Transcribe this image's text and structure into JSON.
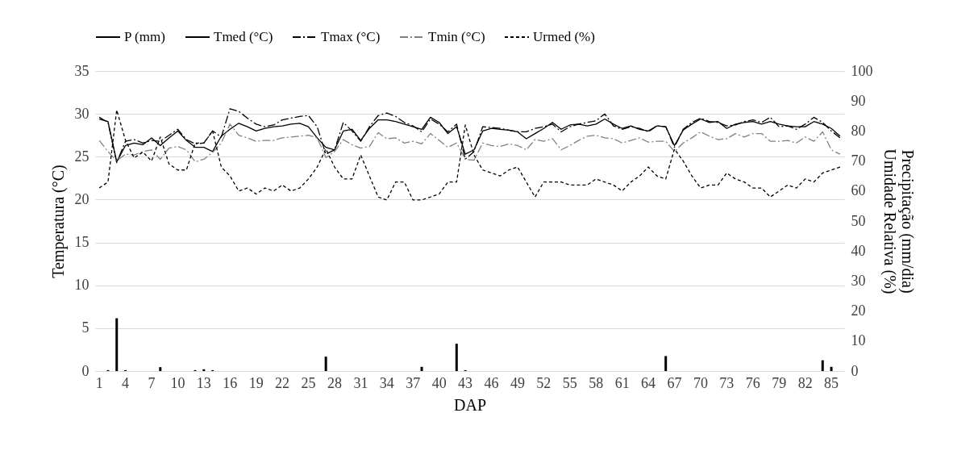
{
  "chart_data": {
    "type": "line",
    "xlabel": "DAP",
    "ylabel": "Temperatura (°C)",
    "y2label": "Precipitação (mm/dia) Umidade Relativa (%)",
    "categories": [
      "1",
      null,
      null,
      "4",
      null,
      null,
      "7",
      null,
      null,
      "10",
      null,
      null,
      "13",
      null,
      null,
      "16",
      null,
      null,
      "19",
      null,
      null,
      "22",
      null,
      null,
      "25",
      null,
      null,
      "28",
      null,
      null,
      "31",
      null,
      null,
      "34",
      null,
      null,
      "37",
      null,
      null,
      "40",
      null,
      null,
      "43",
      null,
      null,
      "46",
      null,
      null,
      "49",
      null,
      null,
      "52",
      null,
      null,
      "55",
      null,
      null,
      "58",
      null,
      null,
      "61",
      null,
      null,
      "64",
      null,
      null,
      "67",
      null,
      null,
      "70",
      null,
      null,
      "73",
      null,
      null,
      "76",
      null,
      null,
      "79",
      null,
      null,
      "82",
      null,
      null,
      "85",
      null
    ],
    "ylim": [
      0,
      35
    ],
    "yticks": [
      0,
      5,
      10,
      15,
      20,
      25,
      30,
      35
    ],
    "y2lim": [
      0,
      100
    ],
    "y2ticks": [
      0,
      10,
      20,
      30,
      40,
      50,
      60,
      70,
      80,
      90,
      100
    ],
    "grid": "y",
    "legend": "top",
    "marker": "none",
    "series": [
      {
        "name": "P (mm)",
        "type": "bar",
        "axis": "y2",
        "color": "#000000",
        "values": [
          0,
          0.3,
          17.6,
          0.3,
          0,
          0,
          0,
          1.3,
          0,
          0,
          0,
          0.3,
          0.6,
          0.3,
          0,
          0,
          0,
          0,
          0,
          0,
          0,
          0,
          0,
          0,
          0,
          0,
          4.8,
          0,
          0,
          0,
          0,
          0,
          0,
          0,
          0,
          0,
          0,
          1.4,
          0,
          0,
          0,
          9.1,
          0.3,
          0,
          0,
          0,
          0,
          0,
          0,
          0,
          0,
          0,
          0,
          0,
          0,
          0,
          0,
          0,
          0,
          0,
          0,
          0,
          0,
          0,
          0,
          5,
          0,
          0,
          0,
          0,
          0,
          0,
          0,
          0,
          0,
          0,
          0,
          0,
          0,
          0,
          0,
          0,
          0,
          3.6,
          1.4,
          0
        ]
      },
      {
        "name": "Tmed (°C)",
        "line_style": "solid",
        "color": "#000000",
        "values": [
          29.4,
          29.1,
          24.4,
          26.3,
          26.6,
          26.4,
          27.2,
          26.3,
          27.2,
          28.0,
          26.9,
          26.1,
          26.1,
          25.6,
          27.4,
          28.2,
          28.9,
          28.5,
          28.0,
          28.3,
          28.5,
          28.6,
          28.8,
          28.9,
          28.5,
          27.2,
          26.1,
          25.8,
          28.0,
          28.2,
          26.9,
          28.3,
          29.3,
          29.3,
          29.1,
          28.8,
          28.5,
          28.2,
          29.6,
          29.0,
          27.7,
          28.5,
          25.3,
          25.8,
          28.0,
          28.3,
          28.2,
          28.1,
          27.9,
          27.1,
          27.7,
          28.3,
          29.0,
          28.2,
          28.7,
          28.8,
          28.6,
          28.8,
          29.4,
          28.8,
          28.3,
          28.6,
          28.2,
          28.0,
          28.6,
          28.5,
          26.3,
          28.1,
          28.8,
          29.4,
          29.0,
          29.1,
          28.3,
          28.8,
          29.0,
          29.1,
          28.8,
          29.1,
          28.8,
          28.6,
          28.5,
          28.5,
          29.1,
          28.8,
          28.3,
          27.4
        ]
      },
      {
        "name": "Tmax (°C)",
        "line_style": "dashdot",
        "color": "#000000",
        "values": [
          29.6,
          29.0,
          24.3,
          26.8,
          27.0,
          26.6,
          26.9,
          26.8,
          27.5,
          28.2,
          27.0,
          26.5,
          26.6,
          28.0,
          27.3,
          30.6,
          30.3,
          29.5,
          28.8,
          28.5,
          28.7,
          29.3,
          29.5,
          29.7,
          29.8,
          28.5,
          25.3,
          25.8,
          29.0,
          28.0,
          26.8,
          28.5,
          29.8,
          30.1,
          29.7,
          29.0,
          28.6,
          27.9,
          29.4,
          28.8,
          27.9,
          28.8,
          24.7,
          25.6,
          28.5,
          28.4,
          28.3,
          28.1,
          27.9,
          27.9,
          28.3,
          28.5,
          28.8,
          27.9,
          28.5,
          28.8,
          29.0,
          29.2,
          30.0,
          28.6,
          28.2,
          28.5,
          28.3,
          27.9,
          28.6,
          28.5,
          26.1,
          28.2,
          29.0,
          29.5,
          29.1,
          29.0,
          28.6,
          28.7,
          29.1,
          29.3,
          29.0,
          29.6,
          28.5,
          28.6,
          28.2,
          28.8,
          29.6,
          29.0,
          28.0,
          27.2
        ]
      },
      {
        "name": "Tmin (°C)",
        "line_style": "dashdot",
        "color": "#808080",
        "values": [
          26.9,
          25.6,
          24.5,
          25.3,
          25.2,
          25.6,
          25.8,
          24.7,
          26.0,
          26.2,
          25.8,
          24.4,
          24.7,
          25.5,
          26.6,
          28.8,
          27.5,
          27.2,
          26.8,
          26.9,
          26.9,
          27.2,
          27.3,
          27.4,
          27.5,
          27.2,
          24.9,
          25.6,
          27.0,
          26.4,
          26.0,
          26.2,
          27.8,
          27.1,
          27.2,
          26.6,
          26.8,
          26.5,
          27.7,
          26.9,
          26.1,
          26.6,
          24.7,
          24.6,
          26.6,
          26.3,
          26.2,
          26.5,
          26.3,
          25.8,
          27.0,
          26.8,
          27.1,
          25.8,
          26.3,
          26.9,
          27.4,
          27.5,
          27.2,
          27.1,
          26.6,
          26.9,
          27.2,
          26.7,
          26.8,
          26.8,
          25.6,
          26.6,
          27.2,
          27.9,
          27.4,
          27.0,
          27.1,
          27.7,
          27.3,
          27.7,
          27.7,
          26.8,
          26.8,
          26.9,
          26.6,
          27.3,
          26.8,
          27.9,
          25.8,
          25.3
        ]
      },
      {
        "name": "Urmed (%)",
        "line_style": "dashed",
        "axis": "y2",
        "color": "#000000",
        "values": [
          61,
          63,
          87,
          77,
          71,
          73,
          70,
          78,
          69,
          67,
          67,
          76,
          76,
          80,
          68,
          65,
          60,
          61,
          59,
          61,
          60,
          62,
          60,
          61,
          64,
          68,
          74,
          68,
          64,
          64,
          72,
          65,
          58,
          57,
          63,
          63,
          57,
          57,
          58,
          59,
          63,
          63,
          82,
          72,
          67,
          66,
          65,
          67,
          68,
          63,
          58,
          63,
          63,
          63,
          62,
          62,
          62,
          64,
          63,
          62,
          60,
          63,
          65,
          68,
          65,
          64,
          74,
          70,
          65,
          61,
          62,
          62,
          66,
          64,
          63,
          61,
          61,
          58,
          60,
          62,
          61,
          64,
          63,
          66,
          67,
          68
        ]
      }
    ]
  }
}
